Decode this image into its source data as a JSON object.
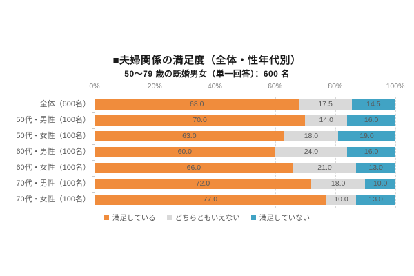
{
  "title": "■夫婦関係の満足度（全体・性年代別）",
  "subtitle": "50～79 歳の既婚男女（単一回答）：600 名",
  "chart_data": {
    "type": "bar",
    "stacked": true,
    "orientation": "horizontal",
    "title": "■夫婦関係の満足度（全体・性年代別）",
    "subtitle": "50～79 歳の既婚男女（単一回答）：600 名",
    "categories": [
      "全体（600名）",
      "50代・男性（100名）",
      "50代・女性（100名）",
      "60代・男性（100名）",
      "60代・女性（100名）",
      "70代・男性（100名）",
      "70代・女性（100名）"
    ],
    "series": [
      {
        "name": "満足している",
        "color": "#F08C3C",
        "values": [
          68.0,
          70.0,
          63.0,
          60.0,
          66.0,
          72.0,
          77.0
        ]
      },
      {
        "name": "どちらともいえない",
        "color": "#D9D9D9",
        "values": [
          17.5,
          14.0,
          18.0,
          24.0,
          21.0,
          18.0,
          10.0
        ]
      },
      {
        "name": "満足していない",
        "color": "#41A3C4",
        "values": [
          14.5,
          16.0,
          19.0,
          16.0,
          13.0,
          10.0,
          13.0
        ]
      }
    ],
    "x_ticks": [
      "0%",
      "20%",
      "40%",
      "60%",
      "80%",
      "100%"
    ],
    "xlim": [
      0,
      100
    ],
    "grid": "dashed-vertical",
    "legend_position": "bottom",
    "value_label_color": "#595959",
    "axis_label_color": "#7f7f7f"
  }
}
